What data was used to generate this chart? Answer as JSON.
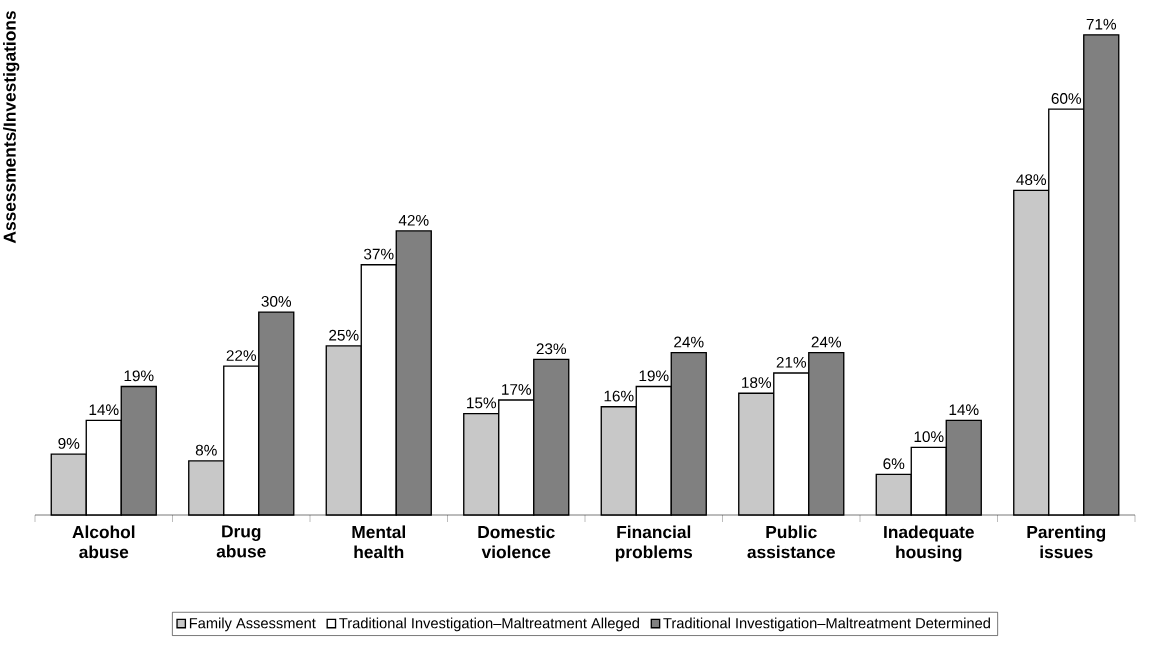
{
  "chart_data": {
    "type": "bar",
    "ylabel": "Assessments/Investigations",
    "categories": [
      "Alcohol abuse",
      "Drug abuse",
      "Mental health",
      "Domestic violence",
      "Financial problems",
      "Public assistance",
      "Inadequate housing",
      "Parenting issues"
    ],
    "series": [
      {
        "name": "Family Assessment",
        "color": "#c8c8c8",
        "values": [
          9,
          8,
          25,
          15,
          16,
          18,
          6,
          48
        ],
        "value_labels": [
          "9%",
          "8%",
          "25%",
          "15%",
          "16%",
          "18%",
          "6%",
          "48%"
        ]
      },
      {
        "name": "Traditional Investigation–Maltreatment Alleged",
        "color": "#ffffff",
        "values": [
          14,
          22,
          37,
          17,
          19,
          21,
          10,
          60
        ],
        "value_labels": [
          "14%",
          "22%",
          "37%",
          "17%",
          "19%",
          "21%",
          "10%",
          "60%"
        ]
      },
      {
        "name": "Traditional Investigation–Maltreatment Determined",
        "color": "#808080",
        "values": [
          19,
          30,
          42,
          23,
          24,
          24,
          14,
          71
        ],
        "value_labels": [
          "19%",
          "30%",
          "42%",
          "23%",
          "24%",
          "24%",
          "14%",
          "71%"
        ]
      }
    ],
    "legend": "bottom"
  }
}
